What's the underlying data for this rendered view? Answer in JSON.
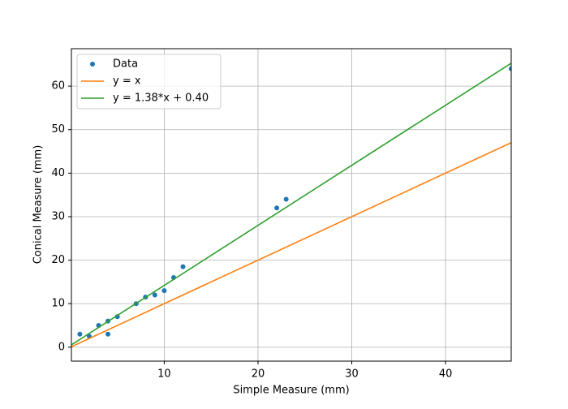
{
  "chart_data": {
    "type": "scatter",
    "xlabel": "Simple Measure (mm)",
    "ylabel": "Conical Measure (mm)",
    "xlim": [
      0.1,
      47
    ],
    "ylim": [
      -3.2,
      68.6
    ],
    "xticks": [
      10,
      20,
      30,
      40
    ],
    "yticks": [
      0,
      10,
      20,
      30,
      40,
      50,
      60
    ],
    "grid": true,
    "legend": "upper-left",
    "series": [
      {
        "name": "Data",
        "type": "scatter",
        "color": "#1f77b4",
        "x": [
          1,
          2,
          3,
          4,
          4,
          5,
          7,
          8,
          9,
          10,
          11,
          12,
          22,
          23,
          47
        ],
        "values": [
          3,
          2.5,
          5,
          3,
          6,
          7,
          10,
          11.5,
          12,
          13,
          16,
          18.5,
          32,
          34,
          64
        ]
      },
      {
        "name": "y = x",
        "type": "line",
        "color": "#ff7f0e",
        "x": [
          0,
          47
        ],
        "values": [
          0,
          47
        ]
      },
      {
        "name": "y = 1.38*x + 0.40",
        "type": "line",
        "color": "#2ca02c",
        "x": [
          0,
          47
        ],
        "values": [
          0.4,
          65.26
        ]
      }
    ]
  }
}
